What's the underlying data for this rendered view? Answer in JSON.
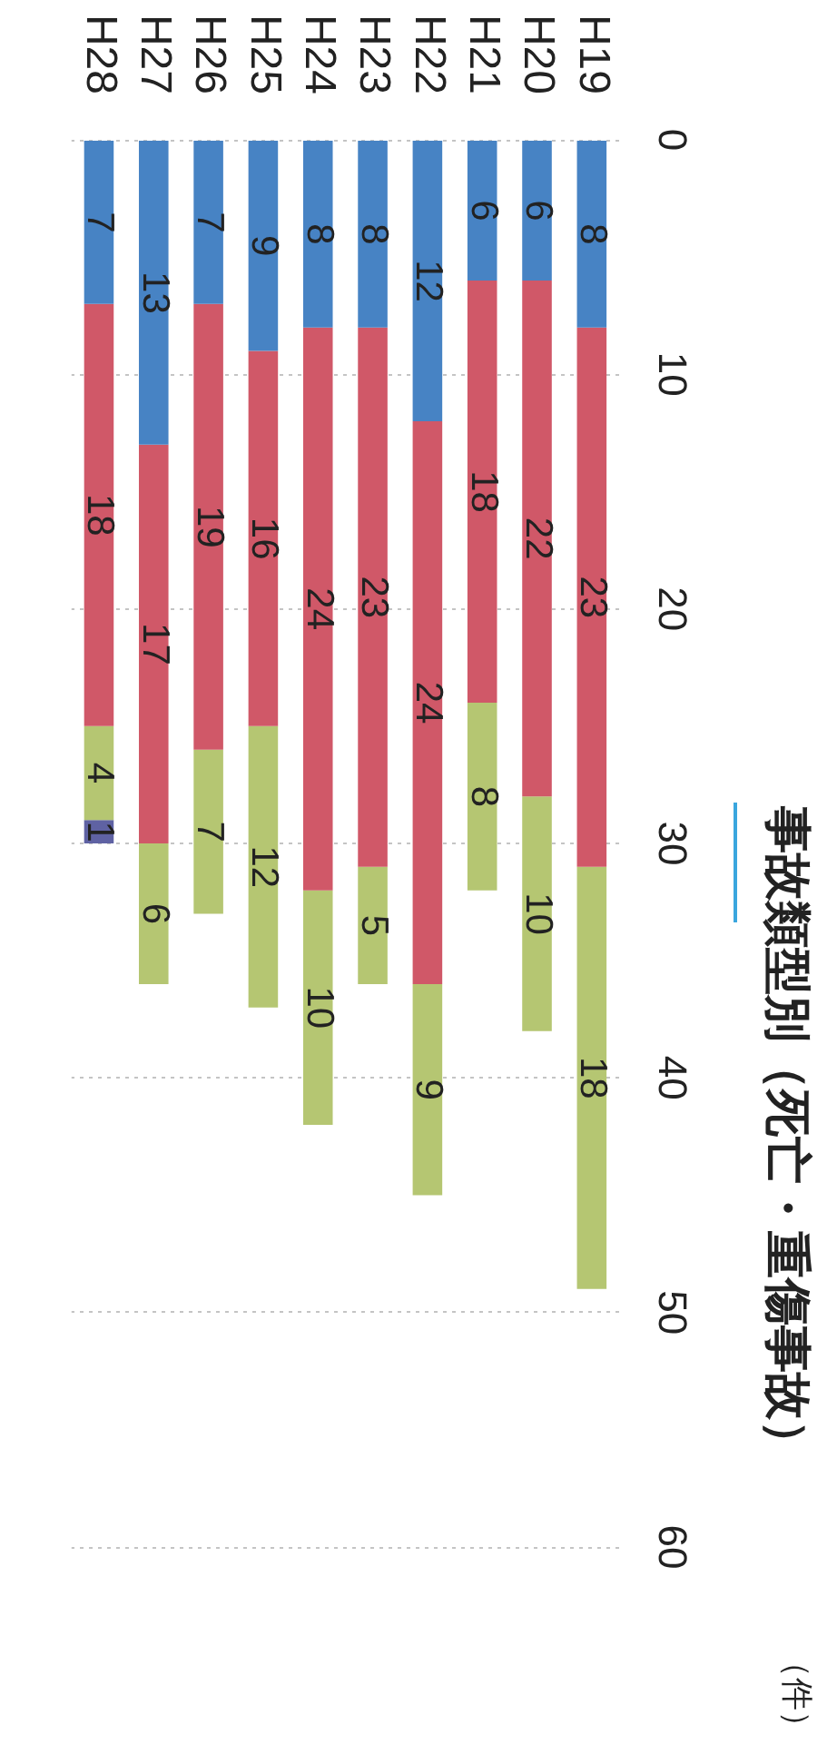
{
  "chart_data": {
    "type": "bar",
    "stacked": true,
    "title": "事故類型別（死亡・重傷事故）",
    "ylabel": "（件）",
    "categories": [
      "H28",
      "H27",
      "H26",
      "H25",
      "H24",
      "H23",
      "H22",
      "H21",
      "H20",
      "H19"
    ],
    "series": [
      {
        "color": "#4783c4",
        "values": [
          7,
          13,
          7,
          9,
          8,
          8,
          12,
          6,
          6,
          8
        ]
      },
      {
        "color": "#d05868",
        "values": [
          18,
          17,
          19,
          16,
          24,
          23,
          24,
          18,
          22,
          23
        ]
      },
      {
        "color": "#b5c672",
        "values": [
          4,
          6,
          7,
          12,
          10,
          5,
          9,
          8,
          10,
          18
        ]
      },
      {
        "color": "#5f62a3",
        "values": [
          1,
          null,
          null,
          null,
          null,
          null,
          null,
          null,
          null,
          null
        ]
      }
    ],
    "ylim": [
      60,
      0
    ],
    "yticks": [
      0,
      10,
      20,
      30,
      40,
      50,
      60
    ],
    "grid": "y",
    "data_labels": true
  }
}
